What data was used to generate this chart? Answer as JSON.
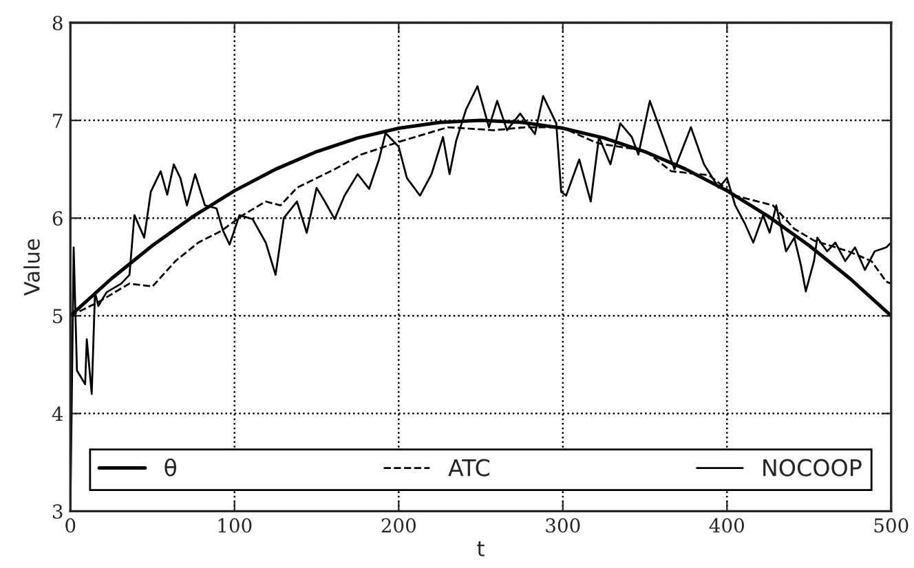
{
  "chart_data": {
    "type": "line",
    "xlabel": "t",
    "ylabel": "Value",
    "xlim": [
      0,
      500
    ],
    "ylim": [
      3,
      8
    ],
    "xticks": [
      0,
      100,
      200,
      300,
      400,
      500
    ],
    "yticks": [
      3,
      4,
      5,
      6,
      7,
      8
    ],
    "grid": true,
    "legend": "bottom",
    "marker": "none",
    "series": [
      {
        "name": "θ",
        "color": "#000000",
        "line_style": "solid",
        "x": [
          0,
          25,
          50,
          75,
          100,
          125,
          150,
          175,
          200,
          225,
          250,
          275,
          300,
          325,
          350,
          375,
          400,
          425,
          450,
          475,
          500
        ],
        "values": [
          5.0,
          5.38,
          5.72,
          6.02,
          6.28,
          6.5,
          6.68,
          6.82,
          6.92,
          6.98,
          7.0,
          6.98,
          6.92,
          6.82,
          6.68,
          6.5,
          6.28,
          6.02,
          5.72,
          5.38,
          5.0
        ]
      },
      {
        "name": "ATC",
        "color": "#000000",
        "line_style": "dashed",
        "x": [
          0,
          17,
          36,
          50,
          64,
          78,
          92,
          105,
          119,
          128,
          138,
          161,
          177,
          202,
          230,
          258,
          277,
          299,
          318,
          323,
          350,
          366,
          389,
          405,
          428,
          441,
          453,
          474,
          488,
          497,
          500
        ],
        "values": [
          5.0,
          5.14,
          5.33,
          5.3,
          5.56,
          5.75,
          5.87,
          6.03,
          6.17,
          6.13,
          6.31,
          6.5,
          6.65,
          6.79,
          6.93,
          6.9,
          6.93,
          6.93,
          6.79,
          6.76,
          6.69,
          6.48,
          6.44,
          6.23,
          6.13,
          5.89,
          5.77,
          5.66,
          5.56,
          5.35,
          5.33
        ]
      },
      {
        "name": "NOCOOP",
        "color": "#000000",
        "line_style": "solid",
        "x": [
          0,
          2,
          4,
          9,
          10,
          13,
          15,
          17,
          22,
          31,
          36,
          39,
          45,
          49,
          55,
          59,
          63,
          67,
          71,
          76,
          82,
          89,
          93,
          97,
          103,
          111,
          119,
          125,
          130,
          138,
          144,
          150,
          155,
          161,
          167,
          175,
          182,
          188,
          192,
          200,
          205,
          213,
          220,
          227,
          231,
          235,
          241,
          248,
          255,
          260,
          266,
          274,
          283,
          288,
          296,
          299,
          302,
          310,
          317,
          322,
          329,
          335,
          342,
          346,
          353,
          361,
          368,
          378,
          386,
          395,
          400,
          405,
          411,
          416,
          422,
          426,
          430,
          436,
          441,
          445,
          448,
          453,
          455,
          461,
          466,
          472,
          478,
          484,
          490,
          497,
          500
        ],
        "values": [
          3.0,
          5.7,
          4.44,
          4.3,
          4.76,
          4.2,
          5.24,
          5.1,
          5.24,
          5.33,
          5.42,
          6.03,
          5.8,
          6.27,
          6.48,
          6.24,
          6.55,
          6.41,
          6.13,
          6.45,
          6.13,
          6.1,
          5.87,
          5.73,
          6.03,
          5.99,
          5.75,
          5.42,
          6.0,
          6.17,
          5.85,
          6.31,
          6.17,
          5.99,
          6.23,
          6.45,
          6.3,
          6.6,
          6.87,
          6.73,
          6.41,
          6.23,
          6.45,
          6.83,
          6.45,
          6.79,
          7.11,
          7.35,
          6.93,
          7.2,
          6.9,
          7.07,
          6.86,
          7.25,
          6.97,
          6.27,
          6.23,
          6.6,
          6.17,
          6.83,
          6.55,
          6.97,
          6.83,
          6.65,
          7.2,
          6.83,
          6.5,
          6.93,
          6.55,
          6.31,
          6.41,
          6.13,
          5.94,
          5.75,
          6.03,
          5.85,
          6.13,
          5.66,
          5.8,
          5.52,
          5.25,
          5.56,
          5.8,
          5.66,
          5.75,
          5.56,
          5.7,
          5.47,
          5.66,
          5.7,
          5.75
        ]
      }
    ]
  }
}
